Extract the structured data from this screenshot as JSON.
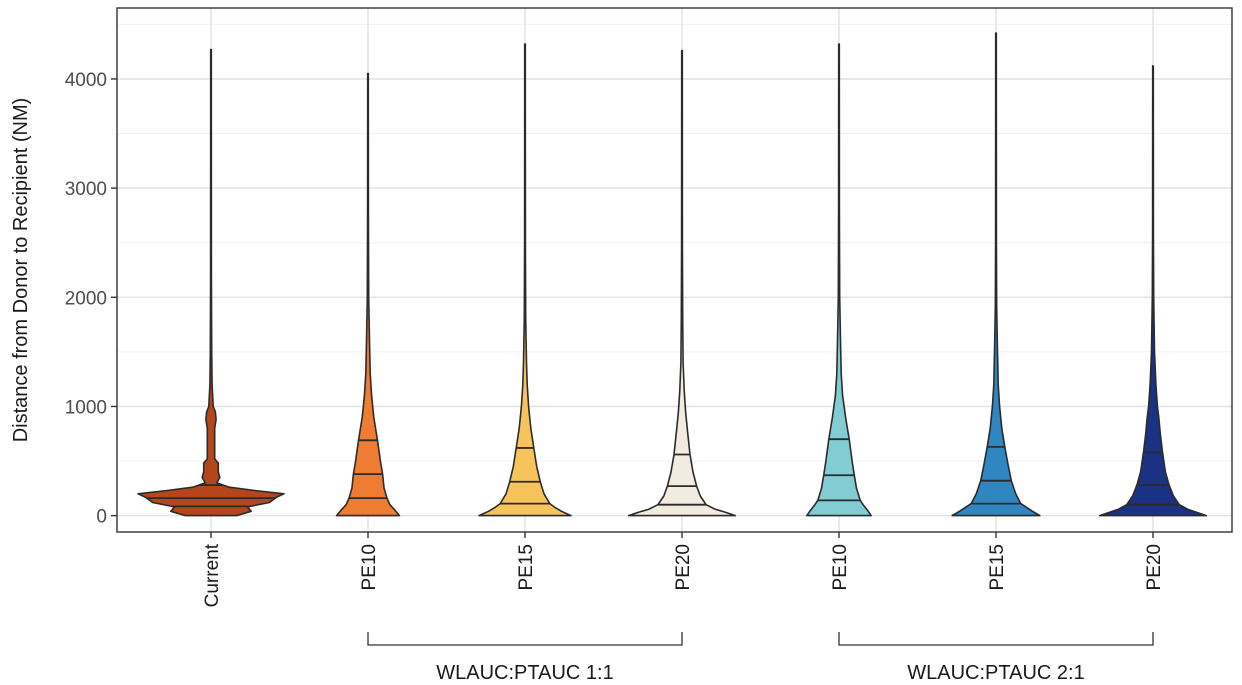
{
  "chart_data": {
    "type": "violin",
    "ylabel": "Distance from Donor to Recipient (NM)",
    "xlabel": "",
    "ylim": [
      -150,
      4650
    ],
    "yticks": [
      0,
      1000,
      2000,
      3000,
      4000
    ],
    "grid": true,
    "categories": [
      "Current",
      "PE10",
      "PE15",
      "PE20",
      "PE10",
      "PE15",
      "PE20"
    ],
    "groups": [
      {
        "label": "WLAUC:PTAUC 1:1",
        "from_index": 1,
        "to_index": 3
      },
      {
        "label": "WLAUC:PTAUC 2:1",
        "from_index": 4,
        "to_index": 6
      }
    ],
    "series": [
      {
        "category": "Current",
        "color": "#b5451b",
        "max": 4270,
        "quartiles": [
          85,
          160,
          280
        ],
        "width_profile": [
          [
            0,
            0.35
          ],
          [
            40,
            0.55
          ],
          [
            80,
            0.5
          ],
          [
            120,
            0.8
          ],
          [
            170,
            0.9
          ],
          [
            200,
            1.0
          ],
          [
            230,
            0.6
          ],
          [
            260,
            0.25
          ],
          [
            300,
            0.08
          ],
          [
            350,
            0.12
          ],
          [
            400,
            0.1
          ],
          [
            480,
            0.1
          ],
          [
            520,
            0.05
          ],
          [
            600,
            0.05
          ],
          [
            700,
            0.05
          ],
          [
            800,
            0.05
          ],
          [
            880,
            0.07
          ],
          [
            950,
            0.06
          ],
          [
            1000,
            0.03
          ],
          [
            1200,
            0.015
          ],
          [
            1500,
            0.01
          ],
          [
            2200,
            0.006
          ],
          [
            4270,
            0.004
          ]
        ]
      },
      {
        "category": "PE10",
        "color": "#ee7d33",
        "max": 4050,
        "quartiles": [
          160,
          380,
          690
        ],
        "width_profile": [
          [
            0,
            0.43
          ],
          [
            50,
            0.37
          ],
          [
            100,
            0.3
          ],
          [
            160,
            0.26
          ],
          [
            250,
            0.22
          ],
          [
            380,
            0.2
          ],
          [
            500,
            0.17
          ],
          [
            690,
            0.13
          ],
          [
            900,
            0.08
          ],
          [
            1100,
            0.05
          ],
          [
            1300,
            0.03
          ],
          [
            1600,
            0.02
          ],
          [
            2000,
            0.01
          ],
          [
            2800,
            0.006
          ],
          [
            4050,
            0.004
          ]
        ]
      },
      {
        "category": "PE15",
        "color": "#f7c45c",
        "max": 4320,
        "quartiles": [
          110,
          310,
          620
        ],
        "width_profile": [
          [
            0,
            0.63
          ],
          [
            40,
            0.5
          ],
          [
            80,
            0.4
          ],
          [
            110,
            0.34
          ],
          [
            200,
            0.26
          ],
          [
            310,
            0.21
          ],
          [
            450,
            0.16
          ],
          [
            620,
            0.12
          ],
          [
            800,
            0.08
          ],
          [
            1000,
            0.05
          ],
          [
            1200,
            0.03
          ],
          [
            1400,
            0.02
          ],
          [
            1800,
            0.01
          ],
          [
            2500,
            0.006
          ],
          [
            4320,
            0.004
          ]
        ]
      },
      {
        "category": "PE20",
        "color": "#f2ebe0",
        "max": 4260,
        "quartiles": [
          100,
          270,
          560
        ],
        "width_profile": [
          [
            0,
            0.73
          ],
          [
            30,
            0.6
          ],
          [
            60,
            0.45
          ],
          [
            100,
            0.33
          ],
          [
            180,
            0.25
          ],
          [
            270,
            0.2
          ],
          [
            400,
            0.15
          ],
          [
            560,
            0.11
          ],
          [
            750,
            0.08
          ],
          [
            950,
            0.05
          ],
          [
            1150,
            0.03
          ],
          [
            1400,
            0.015
          ],
          [
            1800,
            0.01
          ],
          [
            2500,
            0.006
          ],
          [
            4260,
            0.004
          ]
        ]
      },
      {
        "category": "PE10",
        "color": "#82cdd3",
        "max": 4320,
        "quartiles": [
          140,
          370,
          700
        ],
        "width_profile": [
          [
            0,
            0.44
          ],
          [
            50,
            0.39
          ],
          [
            100,
            0.33
          ],
          [
            140,
            0.29
          ],
          [
            250,
            0.24
          ],
          [
            370,
            0.21
          ],
          [
            500,
            0.18
          ],
          [
            700,
            0.14
          ],
          [
            900,
            0.09
          ],
          [
            1100,
            0.05
          ],
          [
            1300,
            0.03
          ],
          [
            1600,
            0.02
          ],
          [
            2000,
            0.01
          ],
          [
            2800,
            0.006
          ],
          [
            4320,
            0.004
          ]
        ]
      },
      {
        "category": "PE15",
        "color": "#2f86c0",
        "max": 4420,
        "quartiles": [
          110,
          320,
          630
        ],
        "width_profile": [
          [
            0,
            0.6
          ],
          [
            40,
            0.5
          ],
          [
            80,
            0.41
          ],
          [
            110,
            0.34
          ],
          [
            200,
            0.27
          ],
          [
            320,
            0.21
          ],
          [
            450,
            0.17
          ],
          [
            630,
            0.12
          ],
          [
            800,
            0.08
          ],
          [
            1000,
            0.05
          ],
          [
            1200,
            0.03
          ],
          [
            1500,
            0.02
          ],
          [
            1900,
            0.01
          ],
          [
            2500,
            0.006
          ],
          [
            4420,
            0.004
          ]
        ]
      },
      {
        "category": "PE20",
        "color": "#1b3184",
        "max": 4120,
        "quartiles": [
          100,
          280,
          580
        ],
        "width_profile": [
          [
            0,
            0.73
          ],
          [
            30,
            0.6
          ],
          [
            60,
            0.47
          ],
          [
            100,
            0.36
          ],
          [
            180,
            0.28
          ],
          [
            280,
            0.22
          ],
          [
            400,
            0.17
          ],
          [
            580,
            0.13
          ],
          [
            750,
            0.1
          ],
          [
            900,
            0.08
          ],
          [
            1000,
            0.06
          ],
          [
            1200,
            0.04
          ],
          [
            1500,
            0.02
          ],
          [
            2000,
            0.01
          ],
          [
            2600,
            0.006
          ],
          [
            4120,
            0.004
          ]
        ]
      }
    ]
  }
}
